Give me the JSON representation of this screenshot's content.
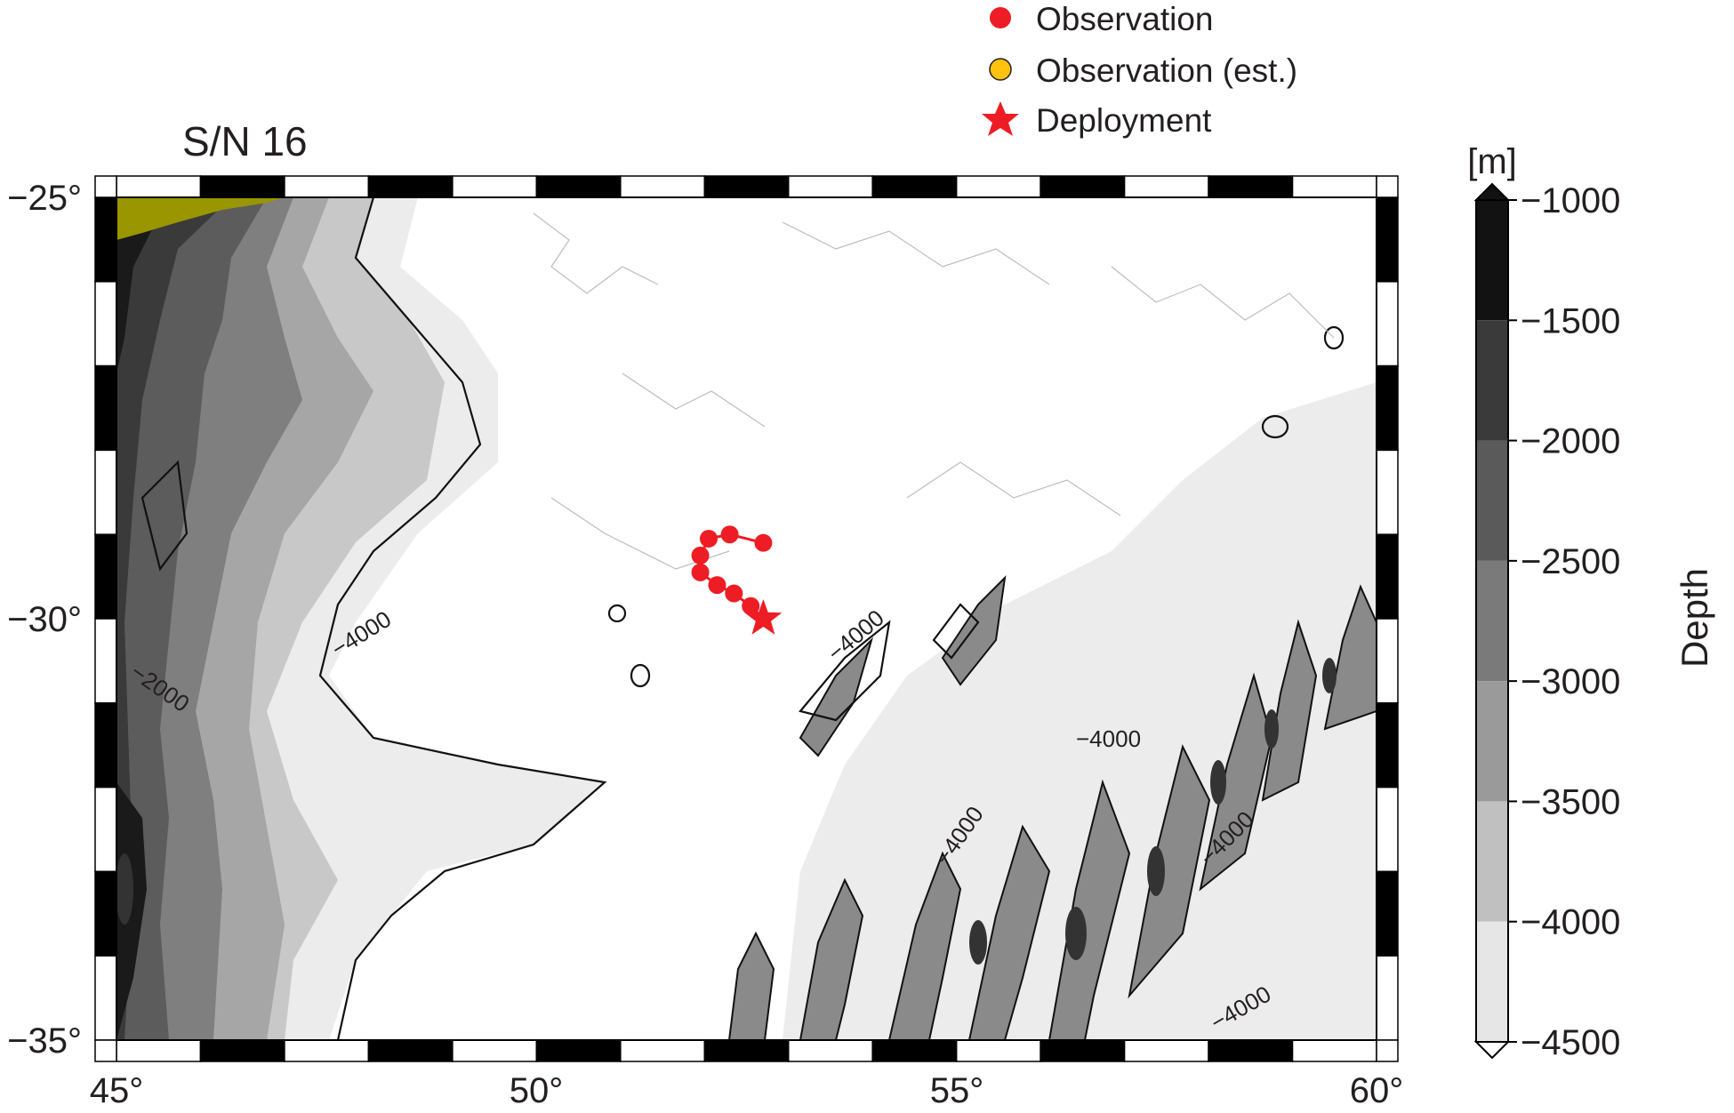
{
  "title": "S/N 16",
  "legend": {
    "items": [
      {
        "label": "Observation",
        "marker": "filled-circle",
        "color": "#ee1c24"
      },
      {
        "label": "Observation (est.)",
        "marker": "filled-circle",
        "color": "#ffc20e"
      },
      {
        "label": "Deployment",
        "marker": "star",
        "color": "#ee1c24"
      }
    ]
  },
  "axes": {
    "x_ticks": [
      "45°",
      "50°",
      "55°",
      "60°"
    ],
    "y_ticks": [
      "−25°",
      "−30°",
      "−35°"
    ],
    "x_range": [
      45,
      60
    ],
    "y_range": [
      -35,
      -25
    ]
  },
  "colorbar": {
    "unit": "[m]",
    "title": "Depth",
    "ticks": [
      "−1000",
      "−1500",
      "−2000",
      "−2500",
      "−3000",
      "−3500",
      "−4000",
      "−4500"
    ]
  },
  "contour_labels": [
    "−4000",
    "−2000",
    "−4000",
    "−4000",
    "−4000",
    "−4000",
    "−4000"
  ],
  "colors": {
    "land": "#9a9600",
    "marker_red": "#ee1c24",
    "marker_est": "#ffc20e"
  },
  "chart_data": {
    "type": "scatter",
    "title": "S/N 16",
    "xlim": [
      45,
      60
    ],
    "ylim": [
      -35,
      -25
    ],
    "deployment": {
      "lon": 52.7,
      "lat": -30.0
    },
    "observations": [
      {
        "lon": 52.55,
        "lat": -29.85
      },
      {
        "lon": 52.35,
        "lat": -29.7
      },
      {
        "lon": 52.15,
        "lat": -29.6
      },
      {
        "lon": 51.95,
        "lat": -29.45
      },
      {
        "lon": 51.95,
        "lat": -29.25
      },
      {
        "lon": 52.05,
        "lat": -29.05
      },
      {
        "lon": 52.3,
        "lat": -29.0
      },
      {
        "lon": 52.7,
        "lat": -29.1
      }
    ],
    "observations_est": []
  }
}
